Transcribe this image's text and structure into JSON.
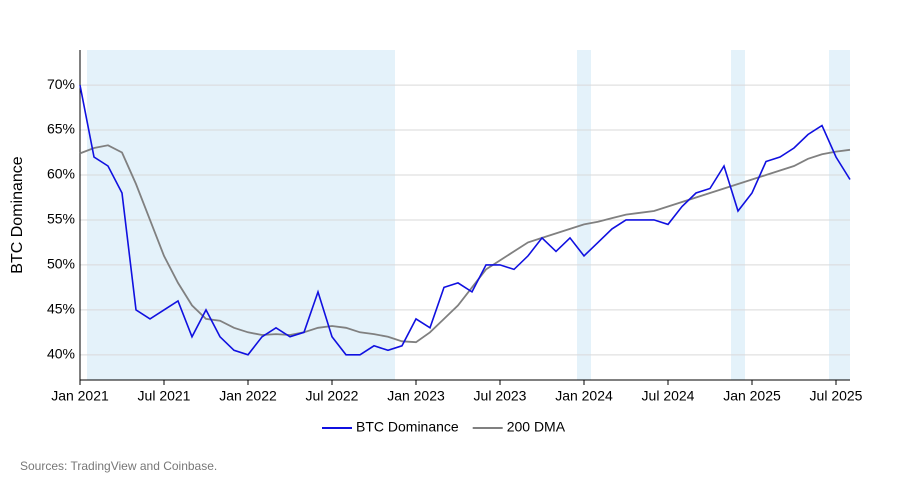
{
  "chart_data": {
    "type": "line",
    "y_label": "BTC Dominance",
    "source": "Sources: TradingView and Coinbase.",
    "x": [
      "2021-01",
      "2021-02",
      "2021-03",
      "2021-04",
      "2021-05",
      "2021-06",
      "2021-07",
      "2021-08",
      "2021-09",
      "2021-10",
      "2021-11",
      "2021-12",
      "2022-01",
      "2022-02",
      "2022-03",
      "2022-04",
      "2022-05",
      "2022-06",
      "2022-07",
      "2022-08",
      "2022-09",
      "2022-10",
      "2022-11",
      "2022-12",
      "2023-01",
      "2023-02",
      "2023-03",
      "2023-04",
      "2023-05",
      "2023-06",
      "2023-07",
      "2023-08",
      "2023-09",
      "2023-10",
      "2023-11",
      "2023-12",
      "2024-01",
      "2024-02",
      "2024-03",
      "2024-04",
      "2024-05",
      "2024-06",
      "2024-07",
      "2024-08",
      "2024-09",
      "2024-10",
      "2024-11",
      "2024-12",
      "2025-01",
      "2025-02",
      "2025-03",
      "2025-04",
      "2025-05",
      "2025-06",
      "2025-07",
      "2025-08"
    ],
    "series": [
      {
        "name": "BTC Dominance",
        "color": "#1010e0",
        "values": [
          70,
          62,
          61,
          58,
          45,
          44,
          45,
          46,
          42,
          45,
          42,
          40.5,
          40,
          42,
          43,
          42,
          42.5,
          47,
          42,
          40,
          40,
          41,
          40.5,
          41,
          44,
          43,
          47.5,
          48,
          47,
          50,
          50,
          49.5,
          51,
          53,
          51.5,
          53,
          51,
          52.5,
          54,
          55,
          55,
          55,
          54.5,
          56.5,
          58,
          58.5,
          61,
          56,
          58,
          61.5,
          62,
          63,
          64.5,
          65.5,
          62,
          59.5
        ]
      },
      {
        "name": "200 DMA",
        "color": "#808080",
        "values": [
          62.4,
          63,
          63.3,
          62.5,
          59,
          55,
          51,
          48,
          45.5,
          44,
          43.8,
          43,
          42.5,
          42.2,
          42.3,
          42.2,
          42.5,
          43,
          43.2,
          43,
          42.5,
          42.3,
          42,
          41.5,
          41.4,
          42.5,
          44,
          45.5,
          47.5,
          49.5,
          50.5,
          51.5,
          52.5,
          53,
          53.5,
          54,
          54.5,
          54.8,
          55.2,
          55.6,
          55.8,
          56,
          56.5,
          57,
          57.5,
          58,
          58.5,
          59,
          59.5,
          60,
          60.5,
          61,
          61.8,
          62.3,
          62.6,
          62.8
        ]
      }
    ],
    "shaded_periods": [
      [
        "2021-02",
        "2022-03"
      ],
      [
        "2022-04",
        "2022-05"
      ],
      [
        "2022-06",
        "2022-11"
      ],
      [
        "2024-01",
        "2024-01"
      ],
      [
        "2024-12",
        "2024-12"
      ],
      [
        "2025-07",
        "2025-08"
      ]
    ],
    "shade_color": "#e4f2fa",
    "xlim": [
      "2021-01",
      "2025-08"
    ],
    "xticks": [
      {
        "value": "2021-01",
        "label": "Jan 2021"
      },
      {
        "value": "2021-07",
        "label": "Jul 2021"
      },
      {
        "value": "2022-01",
        "label": "Jan 2022"
      },
      {
        "value": "2022-07",
        "label": "Jul 2022"
      },
      {
        "value": "2023-01",
        "label": "Jan 2023"
      },
      {
        "value": "2023-07",
        "label": "Jul 2023"
      },
      {
        "value": "2024-01",
        "label": "Jan 2024"
      },
      {
        "value": "2024-07",
        "label": "Jul 2024"
      },
      {
        "value": "2025-01",
        "label": "Jan 2025"
      },
      {
        "value": "2025-07",
        "label": "Jul 2025"
      }
    ],
    "ylim": [
      37.2,
      73.9
    ],
    "yticks": [
      {
        "value": 40,
        "label": "40%"
      },
      {
        "value": 45,
        "label": "45%"
      },
      {
        "value": 50,
        "label": "50%"
      },
      {
        "value": 55,
        "label": "55%"
      },
      {
        "value": 60,
        "label": "60%"
      },
      {
        "value": 65,
        "label": "65%"
      },
      {
        "value": 70,
        "label": "70%"
      }
    ],
    "grid": true,
    "legend": "bottom"
  }
}
